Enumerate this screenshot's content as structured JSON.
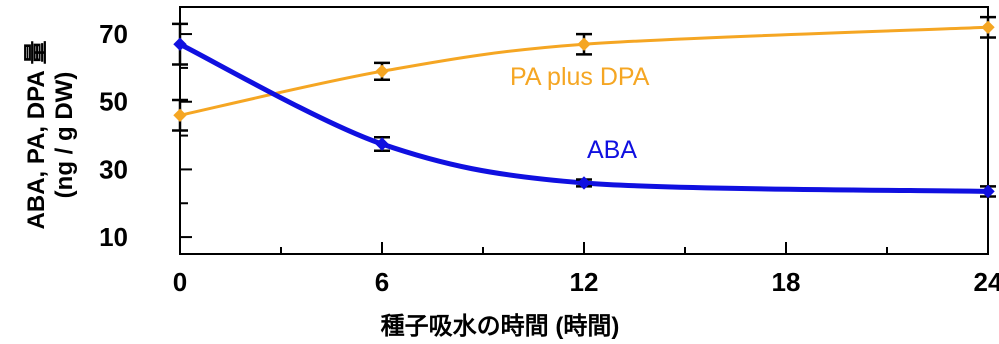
{
  "chart_data": {
    "type": "line",
    "title": "",
    "xlabel": "種子吸水の時間 (時間)",
    "ylabel_line1": "ABA, PA, DPA 量",
    "ylabel_line2": "(ng / g DW)",
    "x": [
      0,
      6,
      12,
      24
    ],
    "xticks": [
      "0",
      "6",
      "12",
      "18",
      "24"
    ],
    "xlim": [
      0,
      24
    ],
    "yticks": [
      "10",
      "30",
      "50",
      "70"
    ],
    "ylim": [
      5,
      78
    ],
    "grid": false,
    "series": [
      {
        "name": "ABA",
        "color": "#1010e0",
        "values": [
          67,
          37.5,
          26,
          23.5
        ],
        "errors": [
          6,
          2,
          1,
          1.5
        ]
      },
      {
        "name": "PA plus DPA",
        "color": "#f5a623",
        "values": [
          46,
          59,
          67,
          72
        ],
        "errors": [
          4.5,
          2.5,
          3,
          3
        ]
      }
    ]
  }
}
